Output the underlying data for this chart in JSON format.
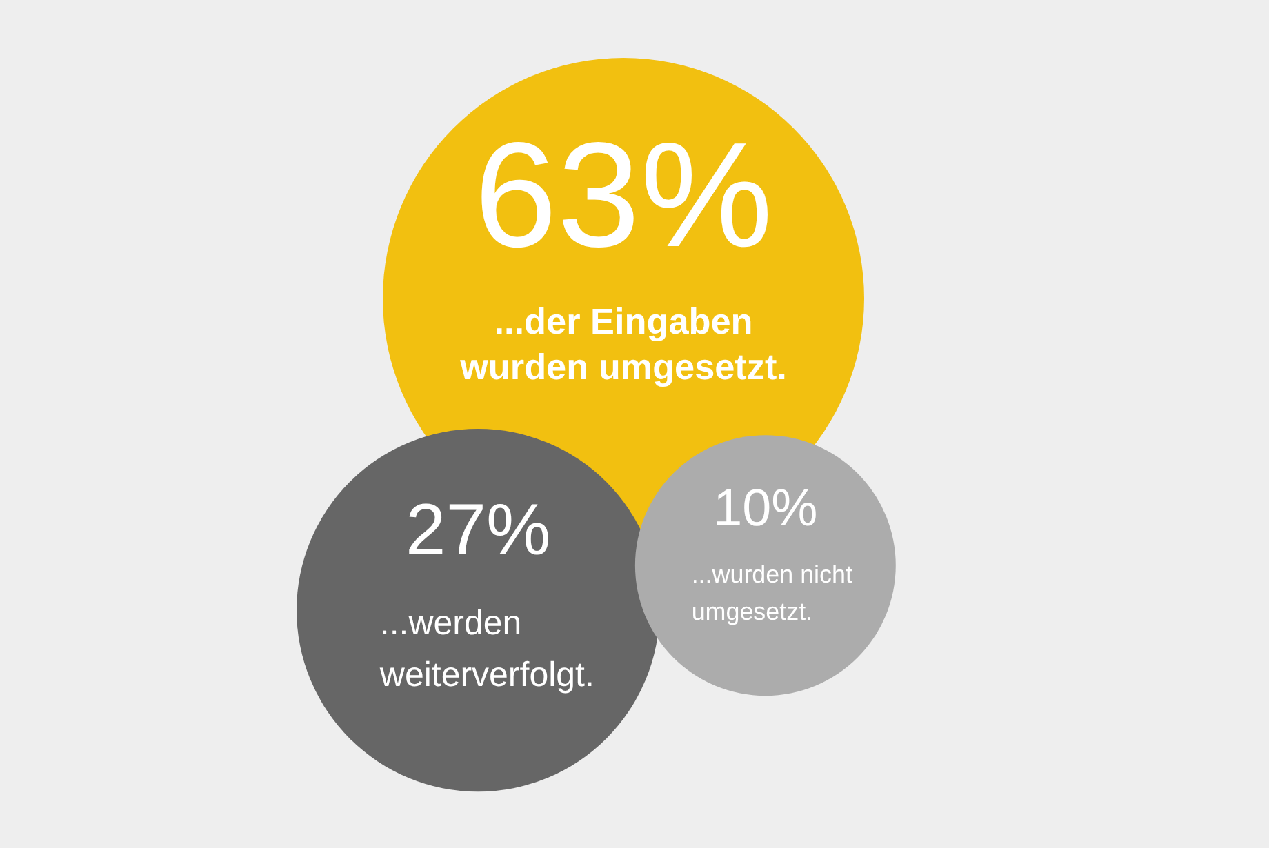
{
  "chart_data": {
    "type": "other",
    "categories": [
      "...der Eingaben wurden umgesetzt.",
      "...werden weiterverfolgt.",
      "...wurden nicht umgesetzt."
    ],
    "values": [
      63,
      27,
      10
    ],
    "value_labels": [
      "63%",
      "27%",
      "10%"
    ],
    "colors": [
      "#f2c010",
      "#666666",
      "#acacac"
    ]
  }
}
